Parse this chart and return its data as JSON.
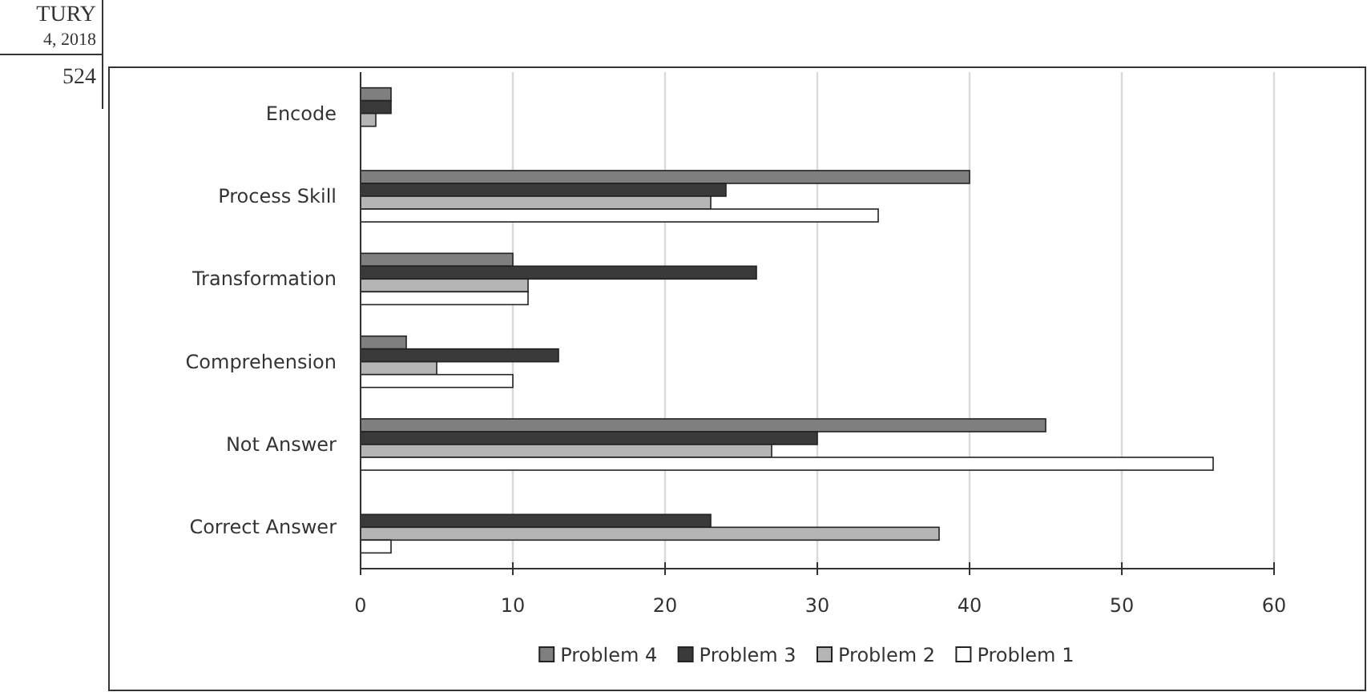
{
  "chart_data": {
    "type": "bar",
    "orientation": "horizontal",
    "categories": [
      "Encode",
      "Process Skill",
      "Transformation",
      "Comprehension",
      "Not Answer",
      "Correct Answer"
    ],
    "series": [
      {
        "name": "Problem 4",
        "color": "#7f7f7f",
        "values": [
          2,
          40,
          10,
          3,
          45,
          0
        ]
      },
      {
        "name": "Problem 3",
        "color": "#3a3a3a",
        "values": [
          2,
          24,
          26,
          13,
          30,
          23
        ]
      },
      {
        "name": "Problem 2",
        "color": "#b5b5b5",
        "values": [
          1,
          23,
          11,
          5,
          27,
          38
        ]
      },
      {
        "name": "Problem 1",
        "color": "#ffffff",
        "values": [
          0,
          34,
          11,
          10,
          56,
          2
        ]
      }
    ],
    "xlim": [
      0,
      60
    ],
    "xticks": [
      0,
      10,
      20,
      30,
      40,
      50,
      60
    ],
    "grid": "x",
    "legend": "bottom",
    "annotations": [
      "TURY",
      "4, 2018",
      "524"
    ]
  }
}
